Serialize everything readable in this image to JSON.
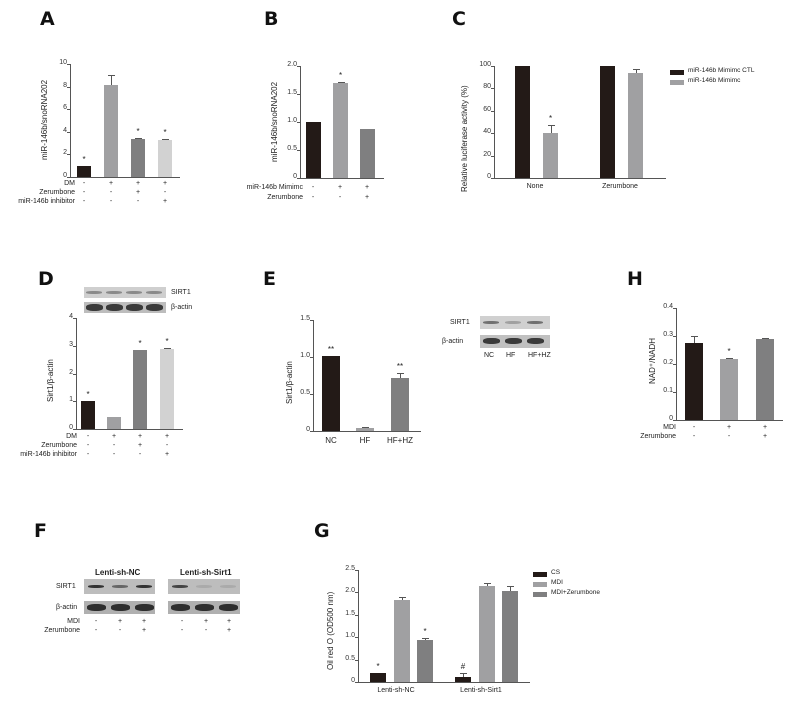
{
  "figure": {
    "panels": [
      "A",
      "B",
      "C",
      "D",
      "E",
      "F",
      "G",
      "H"
    ]
  },
  "colors": {
    "black": "#231a17",
    "gray1": "#a0a0a2",
    "gray2": "#7f7f80",
    "gray3": "#d2d2d2"
  },
  "chart_data": [
    {
      "panel": "A",
      "type": "bar",
      "ylabel": "miR-146b/snoRNA202",
      "ylim": [
        0,
        10
      ],
      "yticks": [
        "0",
        "2",
        "4",
        "6",
        "8",
        "10"
      ],
      "values": [
        1.0,
        8.1,
        3.4,
        3.3
      ],
      "errors": [
        0,
        0.9,
        0.05,
        0.1
      ],
      "significance": [
        "*",
        "",
        "*",
        "*"
      ],
      "conditions": [
        {
          "label": "DM",
          "signs": [
            "-",
            "+",
            "+",
            "+"
          ]
        },
        {
          "label": "Zerumbone",
          "signs": [
            "-",
            "-",
            "+",
            "-"
          ]
        },
        {
          "label": "miR-146b inhibitor",
          "signs": [
            "-",
            "-",
            "-",
            "+"
          ]
        }
      ]
    },
    {
      "panel": "B",
      "type": "bar",
      "ylabel": "miR-146b/snoRNA202",
      "ylim": [
        0,
        2.0
      ],
      "yticks": [
        "0",
        "0.5",
        "1.0",
        "1.5",
        "2.0"
      ],
      "values": [
        1.0,
        1.7,
        0.87
      ],
      "errors": [
        0,
        0.02,
        0
      ],
      "significance": [
        "",
        "*",
        ""
      ],
      "conditions": [
        {
          "label": "miR-146b Mimimc",
          "signs": [
            "-",
            "+",
            "+"
          ]
        },
        {
          "label": "Zerumbone",
          "signs": [
            "-",
            "-",
            "+"
          ]
        }
      ]
    },
    {
      "panel": "C",
      "type": "bar",
      "ylabel": "Relative luciferase activity (%)",
      "ylim": [
        0,
        100
      ],
      "yticks": [
        "0",
        "20",
        "40",
        "60",
        "80",
        "100"
      ],
      "categories": [
        "None",
        "Zerumbone"
      ],
      "series": [
        {
          "name": "miR-146b Mimimc CTL",
          "values": [
            100,
            100
          ],
          "errors": [
            0,
            0
          ]
        },
        {
          "name": "miR-146b Mimimc",
          "values": [
            40,
            94
          ],
          "errors": [
            7,
            3
          ]
        }
      ],
      "significance": {
        "None": "*"
      },
      "legend_position": "right"
    },
    {
      "panel": "D",
      "type": "bar",
      "ylabel": "Sirt1/β-actin",
      "ylim": [
        0,
        4
      ],
      "yticks": [
        "0",
        "1",
        "2",
        "3",
        "4"
      ],
      "values": [
        1.0,
        0.42,
        2.85,
        2.9
      ],
      "errors": [
        0,
        0,
        0,
        0.02
      ],
      "significance": [
        "*",
        "",
        "*",
        "*"
      ],
      "blot_labels": [
        "SIRT1",
        "β-actin"
      ],
      "conditions": [
        {
          "label": "DM",
          "signs": [
            "-",
            "+",
            "+",
            "+"
          ]
        },
        {
          "label": "Zerumbone",
          "signs": [
            "-",
            "-",
            "+",
            "-"
          ]
        },
        {
          "label": "miR-146b inhibitor",
          "signs": [
            "-",
            "-",
            "-",
            "+"
          ]
        }
      ]
    },
    {
      "panel": "E",
      "type": "bar",
      "ylabel": "Sirt1/β-actin",
      "ylim": [
        0,
        1.5
      ],
      "yticks": [
        "0",
        "0.5",
        "1.0",
        "1.5"
      ],
      "categories": [
        "NC",
        "HF",
        "HF+HZ"
      ],
      "values": [
        1.02,
        0.04,
        0.72
      ],
      "errors": [
        0,
        0.02,
        0.07
      ],
      "significance": [
        "**",
        "",
        "**"
      ],
      "blot_labels": [
        "SIRT1",
        "β-actin"
      ],
      "blot_lanes": [
        "NC",
        "HF",
        "HF+HZ"
      ]
    },
    {
      "panel": "G",
      "type": "bar",
      "ylabel": "Oil red O (OD500 nm)",
      "ylim": [
        0,
        2.5
      ],
      "yticks": [
        "0",
        "0.5",
        "1.0",
        "1.5",
        "2.0",
        "2.5"
      ],
      "categories": [
        "Lenti-sh-NC",
        "Lenti-sh-Sirt1"
      ],
      "series": [
        {
          "name": "CS",
          "values": [
            0.2,
            0.12
          ],
          "errors": [
            0,
            0.08
          ]
        },
        {
          "name": "MDI",
          "values": [
            1.83,
            2.15
          ],
          "errors": [
            0.07,
            0.05
          ]
        },
        {
          "name": "MDI+Zerumbone",
          "values": [
            0.93,
            2.04
          ],
          "errors": [
            0.06,
            0.1
          ]
        }
      ],
      "significance": {
        "Lenti-sh-NC": [
          "*",
          "",
          "*"
        ],
        "Lenti-sh-Sirt1": [
          "#",
          "",
          ""
        ]
      },
      "legend_position": "right"
    },
    {
      "panel": "H",
      "type": "bar",
      "ylabel": "NAD⁺/NADH",
      "ylim": [
        0,
        0.4
      ],
      "yticks": [
        "0",
        "0.1",
        "0.2",
        "0.3",
        "0.4"
      ],
      "values": [
        0.275,
        0.217,
        0.29
      ],
      "errors": [
        0.025,
        0.003,
        0.002
      ],
      "significance": [
        "",
        "*",
        ""
      ],
      "conditions": [
        {
          "label": "MDI",
          "signs": [
            "-",
            "+",
            "+"
          ]
        },
        {
          "label": "Zerumbone",
          "signs": [
            "-",
            "-",
            "+"
          ]
        }
      ]
    }
  ],
  "panelF": {
    "groups": [
      "Lenti-sh-NC",
      "Lenti-sh-Sirt1"
    ],
    "blot_labels": [
      "SIRT1",
      "β-actin"
    ],
    "conditions": [
      {
        "label": "MDI",
        "signs": [
          "-",
          "+",
          "+",
          "-",
          "+",
          "+"
        ]
      },
      {
        "label": "Zerumbone",
        "signs": [
          "-",
          "-",
          "+",
          "-",
          "-",
          "+"
        ]
      }
    ]
  }
}
